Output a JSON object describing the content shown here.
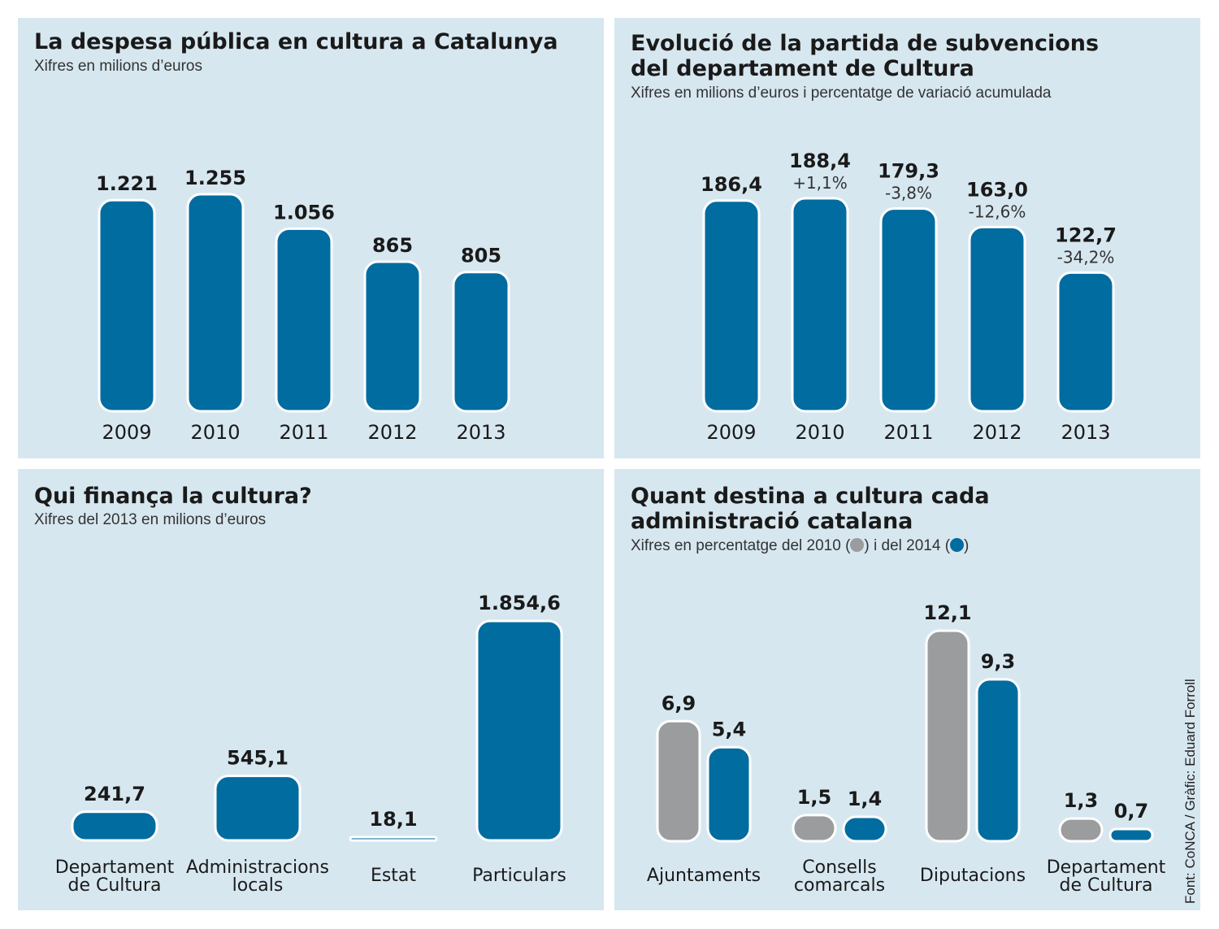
{
  "colors": {
    "bar": "#006c9f",
    "bar_2010": "#9b9c9e",
    "panel_bg": "#d7e7f0",
    "outline": "#ffffff"
  },
  "source": "Font: CoNCA / Gràfic: Eduard Forroll",
  "legend": {
    "text_before": "Xifres en percentatge del 2010 (",
    "text_middle": ") i del 2014 (",
    "text_after": ")"
  },
  "chart_data": [
    {
      "type": "bar",
      "title": "La despesa pública en cultura a Catalunya",
      "subtitle": "Xifres en milions d’euros",
      "categories": [
        "2009",
        "2010",
        "2011",
        "2012",
        "2013"
      ],
      "values": [
        1221,
        1255,
        1056,
        865,
        805
      ],
      "value_labels": [
        "1.221",
        "1.255",
        "1.056",
        "865",
        "805"
      ]
    },
    {
      "type": "bar",
      "title": "Evolució de la partida de subvencions del departament de Cultura",
      "title_lines": [
        "Evolució de la partida de subvencions",
        "del departament de Cultura"
      ],
      "subtitle": "Xifres en milions d’euros i percentatge de variació acumulada",
      "categories": [
        "2009",
        "2010",
        "2011",
        "2012",
        "2013"
      ],
      "values": [
        186.4,
        188.4,
        179.3,
        163.0,
        122.7
      ],
      "value_labels": [
        "186,4",
        "188,4",
        "179,3",
        "163,0",
        "122,7"
      ],
      "variation_labels": [
        "",
        "+1,1%",
        "-3,8%",
        "-12,6%",
        "-34,2%"
      ]
    },
    {
      "type": "bar",
      "title": "Qui finança la cultura?",
      "subtitle": "Xifres del 2013 en milions d’euros",
      "categories": [
        "Departament de Cultura",
        "Administracions locals",
        "Estat",
        "Particulars"
      ],
      "category_lines": [
        [
          "Departament",
          "de Cultura"
        ],
        [
          "Administracions",
          "locals"
        ],
        [
          "Estat"
        ],
        [
          "Particulars"
        ]
      ],
      "values": [
        241.7,
        545.1,
        18.1,
        1854.6
      ],
      "value_labels": [
        "241,7",
        "545,1",
        "18,1",
        "1.854,6"
      ]
    },
    {
      "type": "bar",
      "title": "Quant destina a cultura cada administració catalana",
      "title_lines": [
        "Quant destina a cultura cada",
        "administració catalana"
      ],
      "categories": [
        "Ajuntaments",
        "Consells comarcals",
        "Diputacions",
        "Departament de Cultura"
      ],
      "category_lines": [
        [
          "Ajuntaments"
        ],
        [
          "Consells",
          "comarcals"
        ],
        [
          "Diputacions"
        ],
        [
          "Departament",
          "de Cultura"
        ]
      ],
      "series": [
        {
          "name": "2010",
          "values": [
            6.9,
            1.5,
            12.1,
            1.3
          ],
          "value_labels": [
            "6,9",
            "1,5",
            "12,1",
            "1,3"
          ]
        },
        {
          "name": "2014",
          "values": [
            5.4,
            1.4,
            9.3,
            0.7
          ],
          "value_labels": [
            "5,4",
            "1,4",
            "9,3",
            "0,7"
          ]
        }
      ]
    }
  ]
}
